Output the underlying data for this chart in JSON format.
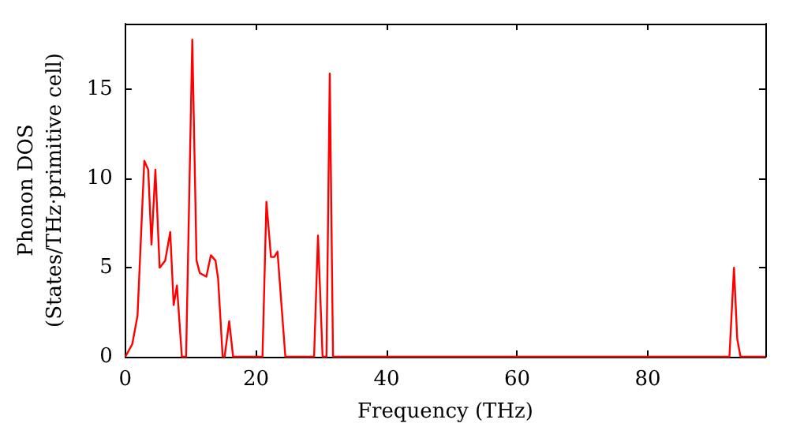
{
  "chart_data": {
    "type": "line",
    "xlabel": "Frequency (THz)",
    "ylabel": "Phonon DOS\n(States/THz·primitive cell)",
    "x": [
      0,
      1.05,
      1.86,
      2.9,
      3.5,
      4.0,
      4.6,
      5.25,
      6.1,
      6.87,
      7.4,
      7.9,
      8.65,
      9.3,
      10.25,
      10.9,
      11.4,
      12.4,
      13.1,
      13.8,
      14.2,
      14.9,
      15.2,
      15.9,
      16.5,
      21.0,
      21.6,
      22.3,
      22.8,
      23.3,
      24.5,
      28.9,
      29.5,
      30.2,
      30.8,
      31.3,
      31.8,
      92.5,
      93.2,
      93.7,
      94.2,
      98
    ],
    "series": [
      {
        "color": "#ff0000",
        "values": [
          0,
          0.7,
          2.3,
          11.0,
          10.5,
          6.3,
          10.5,
          5.0,
          5.4,
          7.0,
          2.9,
          4.0,
          0,
          0,
          17.8,
          5.4,
          4.7,
          4.5,
          5.7,
          5.4,
          4.4,
          0,
          0,
          2.0,
          0,
          0,
          8.7,
          5.6,
          5.6,
          5.9,
          0,
          0,
          6.8,
          0,
          0,
          15.9,
          0,
          0,
          5.0,
          1.0,
          0,
          0
        ]
      }
    ],
    "xlim": [
      0,
      98
    ],
    "ylim": [
      0,
      18.7
    ],
    "xticks": [
      0,
      20,
      40,
      60,
      80
    ],
    "yticks": [
      0,
      5,
      10,
      15
    ],
    "marker": "none",
    "line_style": "solid"
  }
}
